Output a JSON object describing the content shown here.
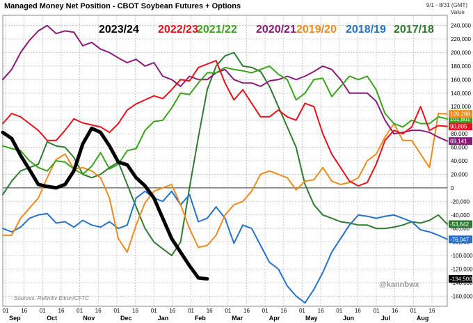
{
  "chart_data": {
    "type": "line",
    "title": "Managed Money Net Position - CBOT Soybean Futures + Options",
    "date_range": "9/1 - 8/31 (GMT)",
    "value_header": "Value",
    "source": "Sources: Refinitiv Eikon/CFTC",
    "watermark": "@kannbwx",
    "ylim": [
      -175000,
      255000
    ],
    "y_ticks": [
      240000,
      220000,
      200000,
      180000,
      160000,
      140000,
      120000,
      100000,
      80000,
      60000,
      40000,
      20000,
      0,
      -20000,
      -40000,
      -60000,
      -80000,
      -100000,
      -120000,
      -140000,
      -160000
    ],
    "y_tick_labels": [
      "240,000",
      "220,000",
      "200,000",
      "180,000",
      "160,000",
      "140,000",
      "120,000",
      "100,000",
      "80,000",
      "60,000",
      "40,000",
      "20,000",
      "0",
      "-20,000",
      "-40,000",
      "-60,000",
      "-80,000",
      "-100,000",
      "-120,000",
      "-140,000",
      "-160,000"
    ],
    "x_ticks": [
      "01",
      "16",
      "01",
      "16",
      "01",
      "16",
      "01",
      "16",
      "01",
      "16",
      "01",
      "16",
      "01",
      "16",
      "01",
      "16",
      "01",
      "16",
      "01",
      "16",
      "01",
      "16",
      "01",
      "16"
    ],
    "months": [
      "Sep",
      "Oct",
      "Nov",
      "Dec",
      "Jan",
      "Feb",
      "Mar",
      "Apr",
      "May",
      "Jun",
      "Jul",
      "Aug"
    ],
    "grid": true,
    "legend_position": "top",
    "series": [
      {
        "name": "2023/24",
        "color": "#000000",
        "x": [
          0,
          1,
          2,
          3,
          4,
          5,
          6,
          7,
          8,
          9,
          10,
          11,
          12,
          13,
          14,
          15,
          16,
          17,
          18,
          19,
          20,
          21,
          22,
          23
        ],
        "y": [
          82000,
          73000,
          48000,
          27000,
          5000,
          2000,
          0,
          5000,
          25000,
          65000,
          88000,
          82000,
          62000,
          38000,
          34000,
          15000,
          3000,
          -15000,
          -45000,
          -75000,
          -95000,
          -115000,
          -133000,
          -134500
        ],
        "end_label": "-134,500"
      },
      {
        "name": "2022/23",
        "color": "#e8101a",
        "x": [
          0,
          1,
          2,
          3,
          4,
          5,
          6,
          7,
          8,
          9,
          10,
          11,
          12,
          13,
          14,
          15,
          16,
          17,
          18,
          19,
          20,
          21,
          22,
          23,
          24,
          25,
          26,
          27,
          28,
          29,
          30,
          31,
          32,
          33,
          34,
          35,
          36,
          37,
          38,
          39,
          40,
          41,
          42,
          43,
          44,
          45,
          46,
          47,
          48,
          49,
          50
        ],
        "y": [
          95000,
          110000,
          105000,
          95000,
          85000,
          70000,
          70000,
          85000,
          102000,
          96000,
          93000,
          90000,
          82000,
          95000,
          115000,
          124000,
          130000,
          136000,
          132000,
          145000,
          160000,
          158000,
          178000,
          183000,
          188000,
          155000,
          130000,
          145000,
          125000,
          105000,
          105000,
          115000,
          105000,
          100000,
          125000,
          120000,
          80000,
          50000,
          30000,
          10000,
          3000,
          8000,
          35000,
          70000,
          85000,
          80000,
          90000,
          120000,
          85000,
          92000,
          90805
        ],
        "end_label": "90,805"
      },
      {
        "name": "2021/22",
        "color": "#3aa31d",
        "x": [
          0,
          1,
          2,
          3,
          4,
          5,
          6,
          7,
          8,
          9,
          10,
          11,
          12,
          13,
          14,
          15,
          16,
          17,
          18,
          19,
          20,
          21,
          22,
          23,
          24,
          25,
          26,
          27,
          28,
          29,
          30,
          31,
          32,
          33,
          34,
          35,
          36,
          37,
          38,
          39,
          40,
          41,
          42,
          43,
          44,
          45,
          46,
          47,
          48,
          49,
          50
        ],
        "y": [
          62000,
          58000,
          55000,
          40000,
          30000,
          25000,
          40000,
          38000,
          28000,
          20000,
          32000,
          52000,
          28000,
          35000,
          55000,
          58000,
          85000,
          98000,
          100000,
          118000,
          140000,
          138000,
          155000,
          170000,
          170000,
          178000,
          175000,
          173000,
          170000,
          175000,
          180000,
          168000,
          160000,
          130000,
          140000,
          160000,
          162000,
          135000,
          150000,
          165000,
          160000,
          165000,
          145000,
          110000,
          95000,
          90000,
          100000,
          95000,
          95000,
          105000,
          101801
        ],
        "end_label": "101,801"
      },
      {
        "name": "2020/21",
        "color": "#8a1a78",
        "x": [
          0,
          1,
          2,
          3,
          4,
          5,
          6,
          7,
          8,
          9,
          10,
          11,
          12,
          13,
          14,
          15,
          16,
          17,
          18,
          19,
          20,
          21,
          22,
          23,
          24,
          25,
          26,
          27,
          28,
          29,
          30,
          31,
          32,
          33,
          34,
          35,
          36,
          37,
          38,
          39,
          40,
          41,
          42,
          43,
          44,
          45,
          46,
          47,
          48,
          49,
          50
        ],
        "y": [
          160000,
          175000,
          200000,
          218000,
          232000,
          240000,
          228000,
          232000,
          230000,
          210000,
          215000,
          205000,
          200000,
          192000,
          185000,
          190000,
          180000,
          185000,
          165000,
          160000,
          150000,
          165000,
          160000,
          160000,
          170000,
          175000,
          160000,
          155000,
          155000,
          150000,
          158000,
          160000,
          165000,
          160000,
          165000,
          172000,
          180000,
          175000,
          160000,
          140000,
          140000,
          140000,
          128000,
          100000,
          80000,
          82000,
          85000,
          85000,
          82000,
          75000,
          69141
        ],
        "end_label": "69,141"
      },
      {
        "name": "2019/20",
        "color": "#f08a1c",
        "x": [
          0,
          1,
          2,
          3,
          4,
          5,
          6,
          7,
          8,
          9,
          10,
          11,
          12,
          13,
          14,
          15,
          16,
          17,
          18,
          19,
          20,
          21,
          22,
          23,
          24,
          25,
          26,
          27,
          28,
          29,
          30,
          31,
          32,
          33,
          34,
          35,
          36,
          37,
          38,
          39,
          40,
          41,
          42,
          43,
          44,
          45,
          46,
          47,
          48,
          49,
          50
        ],
        "y": [
          -70000,
          -70000,
          -45000,
          -30000,
          -15000,
          15000,
          42000,
          50000,
          28000,
          30000,
          25000,
          15000,
          -15000,
          -75000,
          -95000,
          -55000,
          -22000,
          -5000,
          0,
          5000,
          -25000,
          -60000,
          -88000,
          -85000,
          -70000,
          -40000,
          -25000,
          -20000,
          -5000,
          20000,
          25000,
          20000,
          15000,
          -3000,
          10000,
          12000,
          30000,
          10000,
          5000,
          8000,
          15000,
          40000,
          50000,
          75000,
          95000,
          70000,
          70000,
          50000,
          30000,
          110000,
          109288
        ],
        "end_label": "109,288"
      },
      {
        "name": "2018/19",
        "color": "#2672c9",
        "x": [
          0,
          1,
          2,
          3,
          4,
          5,
          6,
          7,
          8,
          9,
          10,
          11,
          12,
          13,
          14,
          15,
          16,
          17,
          18,
          19,
          20,
          21,
          22,
          23,
          24,
          25,
          26,
          27,
          28,
          29,
          30,
          31,
          32,
          33,
          34,
          35,
          36,
          37,
          38,
          39,
          40,
          41,
          42,
          43,
          44,
          45,
          46,
          47,
          48,
          49,
          50
        ],
        "y": [
          -60000,
          -65000,
          -58000,
          -45000,
          -40000,
          -38000,
          -52000,
          -50000,
          -58000,
          -48000,
          -55000,
          -58000,
          -50000,
          -60000,
          -55000,
          -15000,
          -5000,
          -15000,
          -20000,
          -5000,
          -25000,
          -10000,
          -50000,
          -45000,
          -28000,
          -45000,
          -82000,
          -55000,
          -60000,
          -85000,
          -110000,
          -120000,
          -145000,
          -160000,
          -170000,
          -150000,
          -125000,
          -95000,
          -75000,
          -55000,
          -40000,
          -42000,
          -45000,
          -42000,
          -40000,
          -45000,
          -50000,
          -62000,
          -65000,
          -70000,
          -76047
        ],
        "end_label": "-76,047"
      },
      {
        "name": "2017/18",
        "color": "#2e7a2e",
        "x": [
          0,
          1,
          2,
          3,
          4,
          5,
          6,
          7,
          8,
          9,
          10,
          11,
          12,
          13,
          14,
          15,
          16,
          17,
          18,
          19,
          20,
          21,
          22,
          23,
          24,
          25,
          26,
          27,
          28,
          29,
          30,
          31,
          32,
          33,
          34,
          35,
          36,
          37,
          38,
          39,
          40,
          41,
          42,
          43,
          44,
          45,
          46,
          47,
          48,
          49,
          50
        ],
        "y": [
          -10000,
          10000,
          25000,
          30000,
          35000,
          68000,
          62000,
          60000,
          45000,
          20000,
          15000,
          20000,
          30000,
          38000,
          5000,
          -28000,
          -60000,
          -80000,
          -90000,
          -100000,
          -80000,
          0,
          75000,
          145000,
          180000,
          195000,
          200000,
          180000,
          178000,
          172000,
          150000,
          120000,
          90000,
          60000,
          5000,
          -25000,
          -40000,
          -45000,
          -50000,
          -52000,
          -55000,
          -55000,
          -60000,
          -60000,
          -58000,
          -55000,
          -50000,
          -52000,
          -48000,
          -40000,
          -53642
        ],
        "end_label": "-53,642"
      }
    ]
  }
}
